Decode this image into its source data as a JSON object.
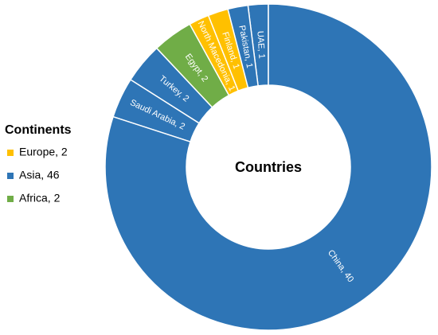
{
  "chart_data": {
    "type": "donut",
    "center_label": "Countries",
    "categories": [
      "China",
      "Saudi Arabia",
      "Turkey",
      "Egypt",
      "North Macedonia",
      "Finland",
      "Pakistan",
      "UAE"
    ],
    "values": [
      40,
      2,
      2,
      2,
      1,
      1,
      1,
      1
    ],
    "value_labels": [
      "China, 40",
      "Saudi Arabia, 2",
      "Turkey, 2",
      "Egypt, 2",
      "North Macedonia, 1",
      "Finland, 1",
      "Pakistan, 1",
      "UAE, 1"
    ],
    "colors": [
      "#2e75b6",
      "#2e75b6",
      "#2e75b6",
      "#70ad47",
      "#ffc000",
      "#ffc000",
      "#2e75b6",
      "#2e75b6"
    ],
    "legend": {
      "title": "Continents",
      "position": "left",
      "entries": [
        {
          "name": "Europe",
          "value": 2,
          "label": "Europe, 2",
          "color": "#ffc000"
        },
        {
          "name": "Asia",
          "value": 46,
          "label": "Asia, 46",
          "color": "#2e75b6"
        },
        {
          "name": "Africa",
          "value": 2,
          "label": "Africa, 2",
          "color": "#70ad47"
        }
      ]
    }
  }
}
